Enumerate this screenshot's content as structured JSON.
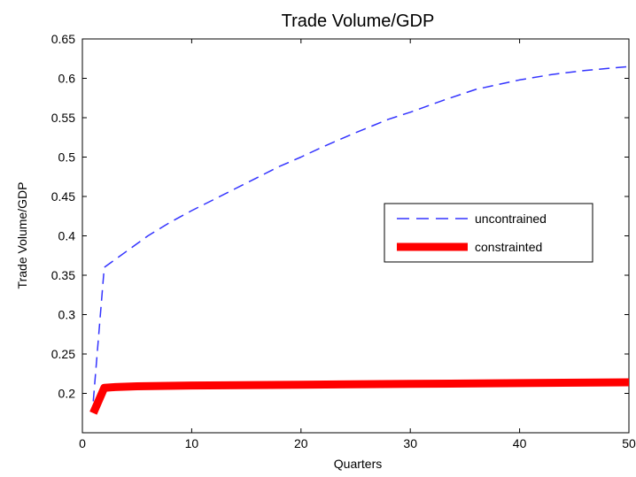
{
  "chart_data": {
    "type": "line",
    "title": "Trade Volume/GDP",
    "xlabel": "Quarters",
    "ylabel": "Trade Volume/GDP",
    "xlim": [
      0,
      50
    ],
    "ylim": [
      0.15,
      0.65
    ],
    "xticks": [
      0,
      10,
      20,
      30,
      40,
      50
    ],
    "xtick_labels": [
      "0",
      "10",
      "20",
      "30",
      "40",
      "50"
    ],
    "yticks": [
      0.2,
      0.25,
      0.3,
      0.35,
      0.4,
      0.45,
      0.5,
      0.55,
      0.6,
      0.65
    ],
    "ytick_labels": [
      "0.2",
      "0.25",
      "0.3",
      "0.35",
      "0.4",
      "0.45",
      "0.5",
      "0.55",
      "0.6",
      "0.65"
    ],
    "grid": false,
    "legend_position": "center-right",
    "series": [
      {
        "name": "uncontrained",
        "color": "#3333ff",
        "style": "dashed",
        "x": [
          1,
          2,
          3,
          4,
          5,
          6,
          8,
          10,
          12,
          15,
          18,
          20,
          22,
          25,
          28,
          30,
          33,
          36,
          40,
          43,
          46,
          50
        ],
        "y": [
          0.19,
          0.36,
          0.37,
          0.38,
          0.39,
          0.4,
          0.417,
          0.432,
          0.446,
          0.467,
          0.488,
          0.5,
          0.513,
          0.531,
          0.548,
          0.557,
          0.572,
          0.586,
          0.598,
          0.605,
          0.61,
          0.615
        ]
      },
      {
        "name": "constrainted",
        "color": "#ff0000",
        "style": "solid-thick",
        "x": [
          1,
          2,
          3,
          5,
          10,
          20,
          30,
          40,
          50
        ],
        "y": [
          0.175,
          0.207,
          0.208,
          0.209,
          0.21,
          0.211,
          0.212,
          0.213,
          0.214
        ]
      }
    ]
  }
}
